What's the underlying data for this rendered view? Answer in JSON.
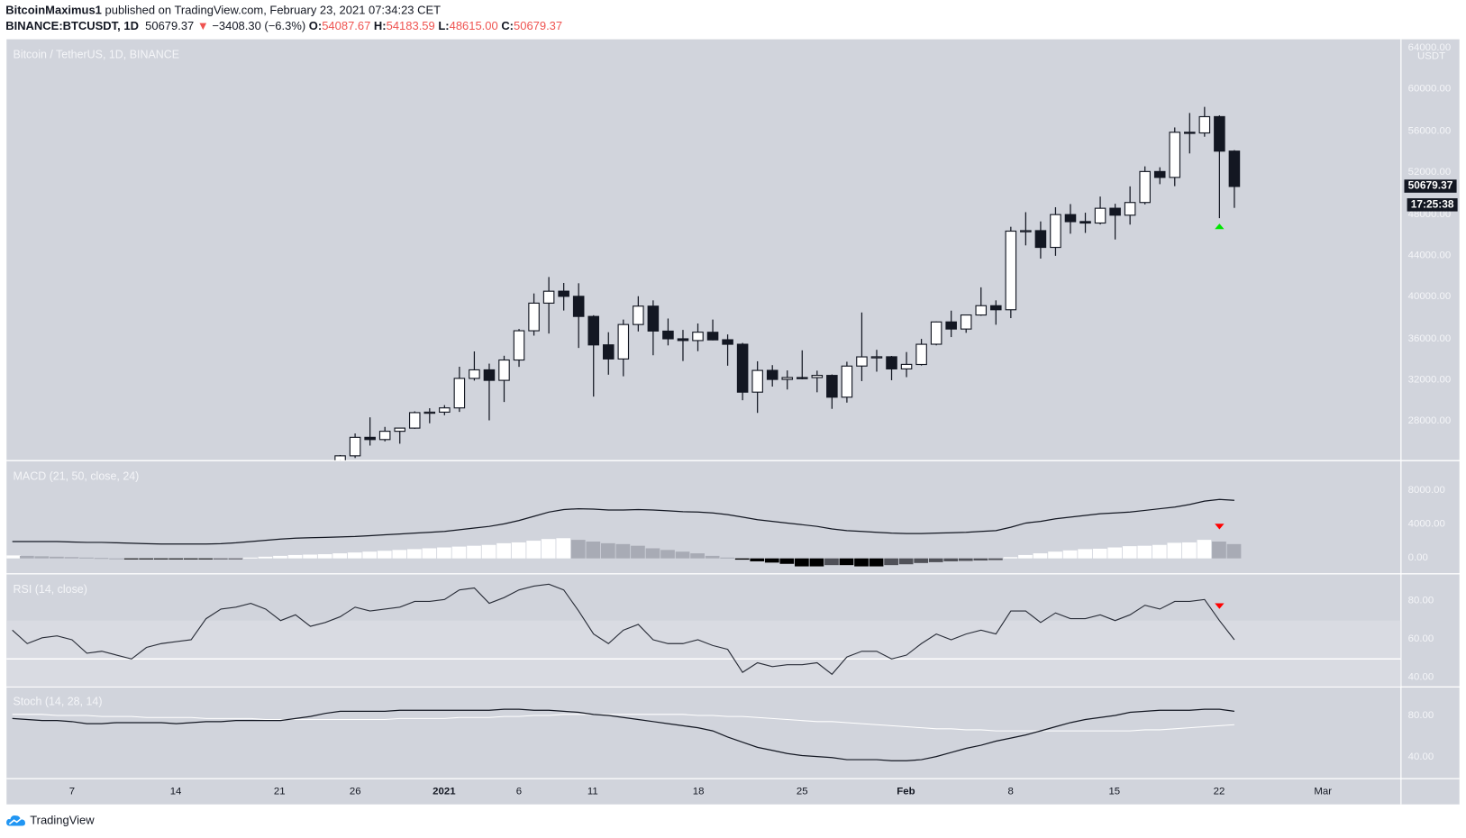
{
  "header": {
    "author": "BitcoinMaximus1",
    "published": "published on TradingView.com, February 23, 2021 07:34:23 CET",
    "symbol": "BINANCE:BTCUSDT, 1D",
    "last": "50679.37",
    "change": "−3408.30 (−6.3%)",
    "o_label": "O:",
    "o": "54087.67",
    "h_label": "H:",
    "h": "54183.59",
    "l_label": "L:",
    "l": "48615.00",
    "c_label": "C:",
    "c": "50679.37"
  },
  "colors": {
    "pane_bg": "#d1d4dc",
    "bear": "#131722",
    "bull": "#ffffff",
    "down_arrow": "#ff0000",
    "up_arrow": "#00e600",
    "change_red": "#ef5350"
  },
  "price_pane": {
    "title": "Bitcoin / TetherUS, 1D, BINANCE",
    "currency": "USDT",
    "price_tag": "50679.37",
    "countdown": "17:25:38",
    "ticks": [
      "64000.00",
      "60000.00",
      "56000.00",
      "52000.00",
      "48000.00",
      "44000.00",
      "40000.00",
      "36000.00",
      "32000.00",
      "28000.00"
    ]
  },
  "macd_pane": {
    "title": "MACD (21, 50, close, 24)",
    "ticks": [
      "8000.00",
      "4000.00",
      "0.00"
    ]
  },
  "rsi_pane": {
    "title": "RSI (14, close)",
    "ticks": [
      "80.00",
      "60.00",
      "40.00"
    ]
  },
  "stoch_pane": {
    "title": "Stoch (14, 28, 14)",
    "ticks": [
      "80.00",
      "40.00"
    ]
  },
  "time_axis": [
    "7",
    "14",
    "21",
    "26",
    "2021",
    "6",
    "11",
    "18",
    "25",
    "Feb",
    "8",
    "15",
    "22",
    "Mar"
  ],
  "footer": {
    "brand": "TradingView"
  },
  "chart_data": [
    {
      "type": "candlestick",
      "title": "Bitcoin / TetherUS, 1D, BINANCE",
      "ylabel": "USDT",
      "ylim": [
        24300,
        64870
      ],
      "first_date": "2020-12-25",
      "last_date": "2021-02-23",
      "ohlc": [
        [
          23729,
          24789,
          23400,
          24712
        ],
        [
          24712,
          26867,
          24500,
          26494
        ],
        [
          26494,
          28422,
          25700,
          26281
        ],
        [
          26281,
          27500,
          26101,
          27079
        ],
        [
          27079,
          27400,
          25880,
          27385
        ],
        [
          27385,
          28999,
          27320,
          28875
        ],
        [
          28875,
          29300,
          27850,
          28924
        ],
        [
          28924,
          29600,
          28624,
          29332
        ],
        [
          29332,
          33300,
          28946,
          32178
        ],
        [
          32178,
          34778,
          31962,
          33000
        ],
        [
          33000,
          33600,
          28130,
          31988
        ],
        [
          31989,
          34360,
          29900,
          33950
        ],
        [
          33950,
          36939,
          33288,
          36769
        ],
        [
          36769,
          40365,
          36300,
          39432
        ],
        [
          39432,
          41950,
          36500,
          40582
        ],
        [
          40586,
          41380,
          38720,
          40088
        ],
        [
          40088,
          41350,
          35111,
          38150
        ],
        [
          38150,
          38264,
          30420,
          35404
        ],
        [
          35410,
          36628,
          32531,
          34051
        ],
        [
          34049,
          37850,
          32380,
          37371
        ],
        [
          37371,
          40100,
          36701,
          39144
        ],
        [
          39141,
          39700,
          34408,
          36742
        ],
        [
          36733,
          37950,
          35357,
          35994
        ],
        [
          35994,
          36852,
          33850,
          35828
        ],
        [
          35824,
          37469,
          34800,
          36631
        ],
        [
          36622,
          37850,
          35844,
          35891
        ],
        [
          35901,
          36415,
          33400,
          35468
        ],
        [
          35468,
          35600,
          30071,
          30850
        ],
        [
          30851,
          33826,
          28850,
          32945
        ],
        [
          32950,
          33456,
          31390,
          32078
        ],
        [
          32078,
          32944,
          31106,
          32259
        ],
        [
          32259,
          34882,
          32083,
          32254
        ],
        [
          32254,
          32921,
          30837,
          32467
        ],
        [
          32464,
          32557,
          29241,
          30366
        ],
        [
          30366,
          33783,
          29842,
          33364
        ],
        [
          33368,
          38531,
          31915,
          34252
        ],
        [
          34246,
          34933,
          32825,
          34262
        ],
        [
          34262,
          34342,
          32000,
          33092
        ],
        [
          33092,
          34717,
          32296,
          33526
        ],
        [
          33517,
          35984,
          33418,
          35466
        ],
        [
          35472,
          37662,
          35362,
          37618
        ],
        [
          37620,
          38708,
          36161,
          36936
        ],
        [
          36936,
          38310,
          36570,
          38290
        ],
        [
          38289,
          40955,
          38215,
          39186
        ],
        [
          39181,
          39700,
          37351,
          38795
        ],
        [
          38795,
          46794,
          37988,
          46374
        ],
        [
          46374,
          48200,
          45000,
          46420
        ],
        [
          46420,
          47310,
          43727,
          44807
        ],
        [
          44807,
          48678,
          43994,
          47969
        ],
        [
          47968,
          48985,
          46125,
          47287
        ],
        [
          47298,
          48150,
          46202,
          47153
        ],
        [
          47156,
          49707,
          47015,
          48577
        ],
        [
          48580,
          49010,
          45570,
          47911
        ],
        [
          47911,
          50689,
          47003,
          49133
        ],
        [
          49134,
          52618,
          48947,
          52119
        ],
        [
          52118,
          52530,
          50901,
          51552
        ],
        [
          51552,
          56368,
          50710,
          55906
        ],
        [
          55906,
          57768,
          53863,
          55841
        ],
        [
          55841,
          58352,
          55477,
          57408
        ],
        [
          57413,
          57534,
          47622,
          54087
        ],
        [
          54087.67,
          54183.59,
          48615.0,
          50679.37
        ]
      ],
      "markers": [
        {
          "date": "2021-02-22",
          "type": "up-arrow",
          "color": "#00e600"
        }
      ]
    },
    {
      "type": "line",
      "title": "MACD (21, 50, close, 24)",
      "first_date": "2020-12-03",
      "ylim": [
        -1778,
        11556
      ],
      "macd": [
        2000,
        2000,
        2000,
        2000,
        1950,
        1900,
        1900,
        1850,
        1800,
        1750,
        1700,
        1700,
        1700,
        1700,
        1750,
        1850,
        2000,
        2150,
        2300,
        2400,
        2450,
        2500,
        2550,
        2600,
        2700,
        2800,
        2900,
        3000,
        3100,
        3200,
        3400,
        3600,
        3800,
        4100,
        4500,
        5000,
        5500,
        5800,
        5900,
        5850,
        5750,
        5750,
        5800,
        5750,
        5650,
        5550,
        5500,
        5400,
        5200,
        4900,
        4600,
        4400,
        4200,
        4000,
        3800,
        3500,
        3300,
        3200,
        3100,
        3000,
        2950,
        2950,
        3000,
        3050,
        3100,
        3200,
        3300,
        3700,
        4200,
        4400,
        4700,
        4900,
        5100,
        5300,
        5400,
        5500,
        5700,
        5900,
        6100,
        6400,
        6800,
        7000,
        6900
      ],
      "histogram": [
        350,
        300,
        250,
        200,
        150,
        100,
        50,
        0,
        -50,
        -100,
        -100,
        -100,
        -100,
        -100,
        -50,
        -20,
        100,
        200,
        300,
        400,
        450,
        500,
        600,
        700,
        800,
        900,
        1000,
        1100,
        1200,
        1300,
        1400,
        1500,
        1600,
        1800,
        1900,
        2100,
        2300,
        2400,
        2200,
        2000,
        1800,
        1700,
        1500,
        1200,
        1000,
        800,
        600,
        300,
        100,
        -150,
        -350,
        -500,
        -650,
        -950,
        -950,
        -800,
        -800,
        -950,
        -950,
        -800,
        -700,
        -550,
        -450,
        -350,
        -300,
        -250,
        -200,
        150,
        400,
        600,
        800,
        950,
        1100,
        1150,
        1300,
        1450,
        1500,
        1600,
        1850,
        1900,
        2200,
        2000,
        1700
      ],
      "markers": [
        {
          "date": "2021-02-22",
          "type": "down-arrow",
          "color": "#ff0000"
        }
      ]
    },
    {
      "type": "line",
      "title": "RSI (14, close)",
      "first_date": "2020-12-03",
      "ylim": [
        36,
        94.6
      ],
      "band": [
        30,
        70
      ],
      "midline": 50,
      "values": [
        65,
        58,
        61,
        62,
        60,
        53,
        54,
        52,
        50,
        56,
        58,
        59,
        60,
        71,
        76,
        77,
        79,
        76,
        70,
        73,
        67,
        69,
        72,
        77,
        75,
        76,
        77,
        80,
        80,
        81,
        86,
        87,
        79,
        82,
        86,
        88,
        89,
        86,
        75,
        63,
        58,
        65,
        68,
        60,
        58,
        58,
        60,
        57,
        55,
        43,
        48,
        46,
        47,
        47,
        48,
        42,
        51,
        54,
        54,
        50,
        52,
        58,
        63,
        60,
        63,
        65,
        63,
        75,
        75,
        69,
        74,
        71,
        71,
        73,
        70,
        73,
        78,
        76,
        80,
        80,
        81,
        70,
        60
      ],
      "markers": [
        {
          "date": "2021-02-22",
          "type": "down-arrow",
          "color": "#ff0000"
        }
      ]
    },
    {
      "type": "line",
      "title": "Stoch (14, 28, 14)",
      "first_date": "2020-12-03",
      "ylim": [
        20,
        108
      ],
      "k": [
        78,
        77,
        76,
        76,
        75,
        73,
        73,
        74,
        74,
        74,
        74,
        73,
        74,
        75,
        75,
        76,
        76,
        76,
        76,
        78,
        80,
        83,
        85,
        85,
        85,
        85,
        86,
        86,
        86,
        86,
        86,
        86,
        86,
        87,
        87,
        86,
        86,
        85,
        84,
        82,
        81,
        79,
        77,
        75,
        73,
        71,
        69,
        66,
        60,
        55,
        50,
        47,
        44,
        42,
        41,
        40,
        38,
        38,
        38,
        37,
        37,
        38,
        41,
        45,
        49,
        52,
        56,
        59,
        62,
        66,
        70,
        74,
        77,
        79,
        81,
        84,
        85,
        86,
        86,
        86,
        87,
        87,
        85
      ],
      "d": [
        82,
        82,
        82,
        81,
        81,
        81,
        80,
        80,
        80,
        79,
        79,
        79,
        79,
        78,
        78,
        78,
        78,
        77,
        77,
        77,
        77,
        77,
        77,
        77,
        77,
        77,
        78,
        78,
        78,
        78,
        79,
        79,
        79,
        80,
        80,
        81,
        81,
        82,
        82,
        82,
        82,
        82,
        82,
        82,
        82,
        82,
        81,
        81,
        80,
        80,
        79,
        78,
        77,
        76,
        75,
        75,
        74,
        73,
        72,
        71,
        70,
        69,
        68,
        68,
        67,
        67,
        66,
        66,
        66,
        66,
        66,
        66,
        66,
        66,
        66,
        66,
        67,
        67,
        68,
        69,
        70,
        71,
        72
      ]
    }
  ]
}
